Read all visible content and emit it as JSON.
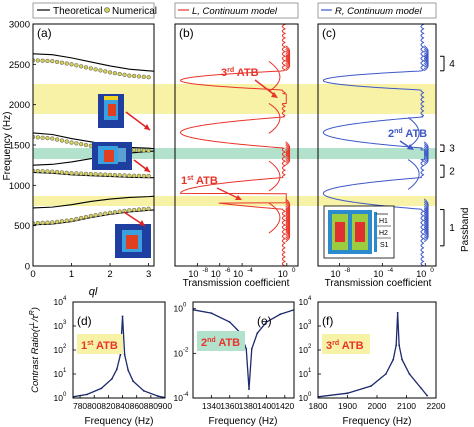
{
  "legend": {
    "theoretical": "Theoretical",
    "numerical": "Numerical",
    "left_model": "L, Continuum model",
    "right_model": "R, Continuum model"
  },
  "colors": {
    "theoretical": "#000000",
    "numerical_marker": "#d4cf55",
    "left": "#e8342a",
    "right": "#3e58c8",
    "band_yellow": "#f7f2a6",
    "band_green": "#b2e2cc",
    "zoom_curve": "#1c2a6e"
  },
  "top_panels": {
    "a_label": "(a)",
    "b_label": "(b)",
    "c_label": "(c)",
    "ylabel": "Frequency (Hz)",
    "yticks": [
      "0",
      "500",
      "1000",
      "1500",
      "2000",
      "2500",
      "3000"
    ],
    "a_xlabel": "ql",
    "a_xticks": [
      "0",
      "1",
      "2",
      "3"
    ],
    "tc_xlabel": "Transmission coefficient",
    "tc_xticks": [
      "10",
      "10",
      "10",
      "10"
    ],
    "tc_xtick_exp": [
      "-8",
      "-6",
      "-4",
      "0"
    ],
    "tc_xtick_exp_alt": [
      "-8",
      "-4",
      "0"
    ],
    "annotations": {
      "atb1_main": "1",
      "atb1_sup": "st",
      "atb1_tail": " ATB",
      "atb3_main": "3",
      "atb3_sup": "rd",
      "atb3_tail": " ATB",
      "atb2_main": "2",
      "atb2_sup": "nd",
      "atb2_tail": " ATB"
    },
    "passband_title": "Passband",
    "passband_labels": [
      "1",
      "2",
      "3",
      "4"
    ],
    "inset_labels": [
      "H1",
      "H2",
      "S1"
    ]
  },
  "bottom_panels": {
    "d_label": "(d)",
    "e_label": "(e)",
    "f_label": "(f)",
    "ylabel": "Contrast Ratio(τ",
    "ylabel_sup": "L",
    "ylabel_mid": "/τ",
    "ylabel_sup2": "R",
    "ylabel_end": ")",
    "xlabel": "Frequency (Hz)",
    "d_xticks": [
      "780",
      "800",
      "820",
      "840",
      "860",
      "880",
      "900"
    ],
    "e_xticks": [
      "1340",
      "1360",
      "1380",
      "1400",
      "1420"
    ],
    "f_xticks": [
      "1800",
      "1900",
      "2000",
      "2100",
      "2200"
    ],
    "d_yticks_exp": [
      "0",
      "1",
      "2",
      "3",
      "4"
    ],
    "e_yticks_exp": [
      "-4",
      "-2",
      "0"
    ],
    "f_yticks_exp": [
      "0",
      "1",
      "2",
      "3",
      "4"
    ],
    "d_box": {
      "main": "1",
      "sup": "st",
      "tail": " ATB"
    },
    "e_box": {
      "main": "2",
      "sup": "nd",
      "tail": " ATB"
    },
    "f_box": {
      "main": "3",
      "sup": "rd",
      "tail": " ATB"
    }
  },
  "chart_data": [
    {
      "type": "scatter",
      "panel": "a",
      "xlabel": "ql",
      "ylabel": "Frequency (Hz)",
      "xlim": [
        0,
        3.14
      ],
      "ylim": [
        0,
        3000
      ],
      "series": [
        {
          "name": "Theoretical",
          "x": [
            0,
            0.5,
            1.0,
            1.5,
            2.0,
            2.5,
            3.0,
            3.14
          ],
          "y_branches": [
            [
              510,
              520,
              550,
              600,
              640,
              670,
              690,
              695
            ],
            [
              720,
              730,
              760,
              800,
              830,
              850,
              860,
              865
            ],
            [
              1160,
              1150,
              1130,
              1120,
              1110,
              1100,
              1095,
              1095
            ],
            [
              1250,
              1260,
              1290,
              1330,
              1370,
              1400,
              1420,
              1425
            ],
            [
              1650,
              1630,
              1580,
              1540,
              1500,
              1470,
              1460,
              1455
            ],
            [
              2630,
              2620,
              2580,
              2530,
              2480,
              2440,
              2420,
              2415
            ]
          ]
        },
        {
          "name": "Numerical",
          "x": [
            0,
            0.5,
            1.0,
            1.5,
            2.0,
            2.5,
            3.0
          ],
          "y_branches": [
            [
              530,
              540,
              570,
              620,
              660,
              690,
              710
            ],
            [
              1180,
              1170,
              1150,
              1140,
              1130,
              1120,
              1115
            ],
            [
              1600,
              1580,
              1530,
              1490,
              1460,
              1440,
              1430
            ],
            [
              2550,
              2540,
              2500,
              2450,
              2400,
              2360,
              2340
            ]
          ]
        }
      ]
    },
    {
      "type": "line",
      "panel": "b",
      "series": [
        {
          "name": "L, Continuum model"
        }
      ],
      "xlabel": "Transmission coefficient",
      "xscale": "log",
      "xlim": [
        1e-10,
        10
      ],
      "ylim": [
        0,
        3000
      ],
      "ylabel": "Frequency (Hz)",
      "bands_hz": [
        [
          780,
          900
        ],
        [
          1880,
          2150
        ]
      ],
      "atb_hz": [
        840,
        2075
      ]
    },
    {
      "type": "line",
      "panel": "c",
      "series": [
        {
          "name": "R, Continuum model"
        }
      ],
      "xlabel": "Transmission coefficient",
      "xscale": "log",
      "xlim": [
        1e-10,
        10
      ],
      "ylim": [
        0,
        3000
      ],
      "ylabel": "Frequency (Hz)",
      "bands_hz": [
        [
          1330,
          1430
        ]
      ],
      "atb_hz": [
        1380
      ]
    },
    {
      "type": "line",
      "panel": "d",
      "xlabel": "Frequency (Hz)",
      "xlim": [
        770,
        900
      ],
      "ylim_log10": [
        0,
        4
      ],
      "peak": {
        "x": 840,
        "log10_y": 3.4
      },
      "x": [
        770,
        790,
        810,
        825,
        832,
        837,
        840,
        843,
        848,
        855,
        870,
        890,
        900
      ],
      "log10_y": [
        0.05,
        0.15,
        0.4,
        0.8,
        1.2,
        1.8,
        3.4,
        1.8,
        1.15,
        0.7,
        0.3,
        0.08,
        0.02
      ]
    },
    {
      "type": "line",
      "panel": "e",
      "xlabel": "Frequency (Hz)",
      "xlim": [
        1320,
        1430
      ],
      "ylim_log10": [
        -4,
        0.3
      ],
      "dip": {
        "x": 1381,
        "log10_y": -3.6
      },
      "x": [
        1320,
        1340,
        1360,
        1372,
        1378,
        1381,
        1384,
        1390,
        1400,
        1415,
        1430
      ],
      "log10_y": [
        -0.05,
        -0.2,
        -0.6,
        -1.1,
        -1.8,
        -3.6,
        -1.8,
        -1.1,
        -0.6,
        -0.25,
        -0.05
      ]
    },
    {
      "type": "line",
      "panel": "f",
      "xlabel": "Frequency (Hz)",
      "xlim": [
        1800,
        2200
      ],
      "ylim_log10": [
        0,
        4
      ],
      "peak": {
        "x": 2070,
        "log10_y": 3.55
      },
      "x": [
        1800,
        1900,
        1980,
        2030,
        2055,
        2065,
        2070,
        2075,
        2085,
        2110,
        2150,
        2170
      ],
      "log10_y": [
        0.05,
        0.2,
        0.5,
        1.0,
        1.6,
        2.2,
        3.55,
        2.2,
        1.6,
        1.0,
        0.4,
        0.1
      ]
    }
  ]
}
